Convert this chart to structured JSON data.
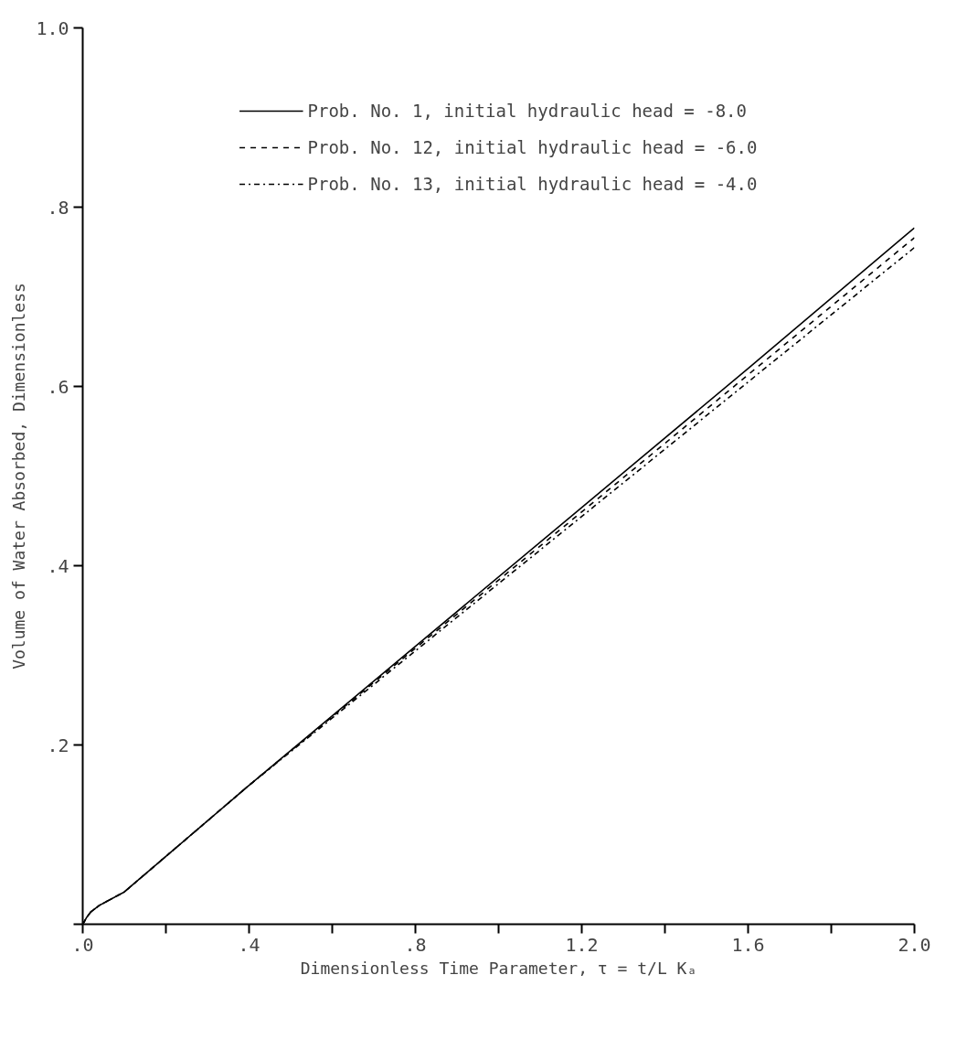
{
  "chart_data": {
    "type": "line",
    "xlabel": "Dimensionless Time Parameter, τ = t/L Kₐ",
    "ylabel": "Volume of Water Absorbed, Dimensionless",
    "x": [
      0,
      0.01,
      0.02,
      0.04,
      0.1,
      0.4,
      0.8,
      1.2,
      1.6,
      2.0
    ],
    "series": [
      {
        "name": "Prob. No. 1, initial hydraulic head = -8.0",
        "color": "#000000",
        "line_style": "solid",
        "values": [
          0,
          0.008,
          0.014,
          0.021,
          0.036,
          0.155,
          0.31,
          0.465,
          0.62,
          0.777
        ]
      },
      {
        "name": "Prob. No. 12, initial hydraulic head = -6.0",
        "color": "#000000",
        "line_style": "dashed",
        "values": [
          0,
          0.008,
          0.014,
          0.021,
          0.036,
          0.155,
          0.308,
          0.46,
          0.613,
          0.766
        ]
      },
      {
        "name": "Prob. No. 13, initial hydraulic head = -4.0",
        "color": "#000000",
        "line_style": "dashdot",
        "values": [
          0,
          0.008,
          0.014,
          0.021,
          0.036,
          0.155,
          0.305,
          0.455,
          0.605,
          0.755
        ]
      }
    ],
    "xlim": [
      0,
      2.0
    ],
    "ylim": [
      0,
      1.0
    ],
    "xticks": [
      {
        "value": 0,
        "label": ".0"
      },
      {
        "value": 0.2,
        "label": null
      },
      {
        "value": 0.4,
        "label": ".4"
      },
      {
        "value": 0.6,
        "label": null
      },
      {
        "value": 0.8,
        "label": ".8"
      },
      {
        "value": 1.0,
        "label": null
      },
      {
        "value": 1.2,
        "label": "1.2"
      },
      {
        "value": 1.4,
        "label": null
      },
      {
        "value": 1.6,
        "label": "1.6"
      },
      {
        "value": 1.8,
        "label": null
      },
      {
        "value": 2.0,
        "label": "2.0"
      }
    ],
    "yticks": [
      {
        "value": 0,
        "label": null
      },
      {
        "value": 0.2,
        "label": ".2"
      },
      {
        "value": 0.4,
        "label": ".4"
      },
      {
        "value": 0.6,
        "label": ".6"
      },
      {
        "value": 0.8,
        "label": ".8"
      },
      {
        "value": 1.0,
        "label": "1.0"
      }
    ],
    "grid": false,
    "legend": "top",
    "marker": "none"
  }
}
